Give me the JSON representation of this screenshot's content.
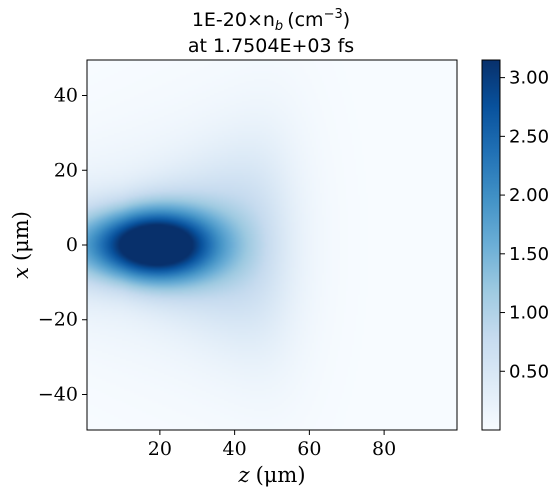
{
  "chart_data": {
    "type": "heatmap",
    "title_line1": "1E-20×n",
    "title_sub": "b",
    "title_unit": "(cm",
    "title_exp": "−3",
    "title_close": ")",
    "title_line2": "at 1.7504E+03 fs",
    "xlabel_var": "z",
    "xlabel_unit": "(μm)",
    "ylabel_var": "x",
    "ylabel_unit": "(μm)",
    "xlim": [
      0.5,
      99.5
    ],
    "ylim": [
      -49.5,
      49.5
    ],
    "xticks": [
      20,
      40,
      60,
      80
    ],
    "yticks": [
      40,
      20,
      0,
      -20,
      -40
    ],
    "xtick_labels": [
      "20",
      "40",
      "60",
      "80"
    ],
    "ytick_labels": [
      "40",
      "20",
      "0",
      "−20",
      "−40"
    ],
    "colorbar": {
      "range": [
        0.0,
        3.15
      ],
      "cmap": "Blues",
      "ticks": [
        0.5,
        1.0,
        1.5,
        2.0,
        2.5,
        3.0
      ],
      "tick_labels": [
        "0.50",
        "1.00",
        "1.50",
        "2.00",
        "2.50",
        "3.00"
      ]
    },
    "field": {
      "description_peak": 3.1,
      "peak_z": 19,
      "peak_x": 0
    },
    "colors": {
      "cmap_stops": [
        "#f7fbff",
        "#deebf7",
        "#c6dbef",
        "#9ecae1",
        "#6baed6",
        "#4292c6",
        "#2171b5",
        "#08519c",
        "#08306b"
      ]
    }
  }
}
